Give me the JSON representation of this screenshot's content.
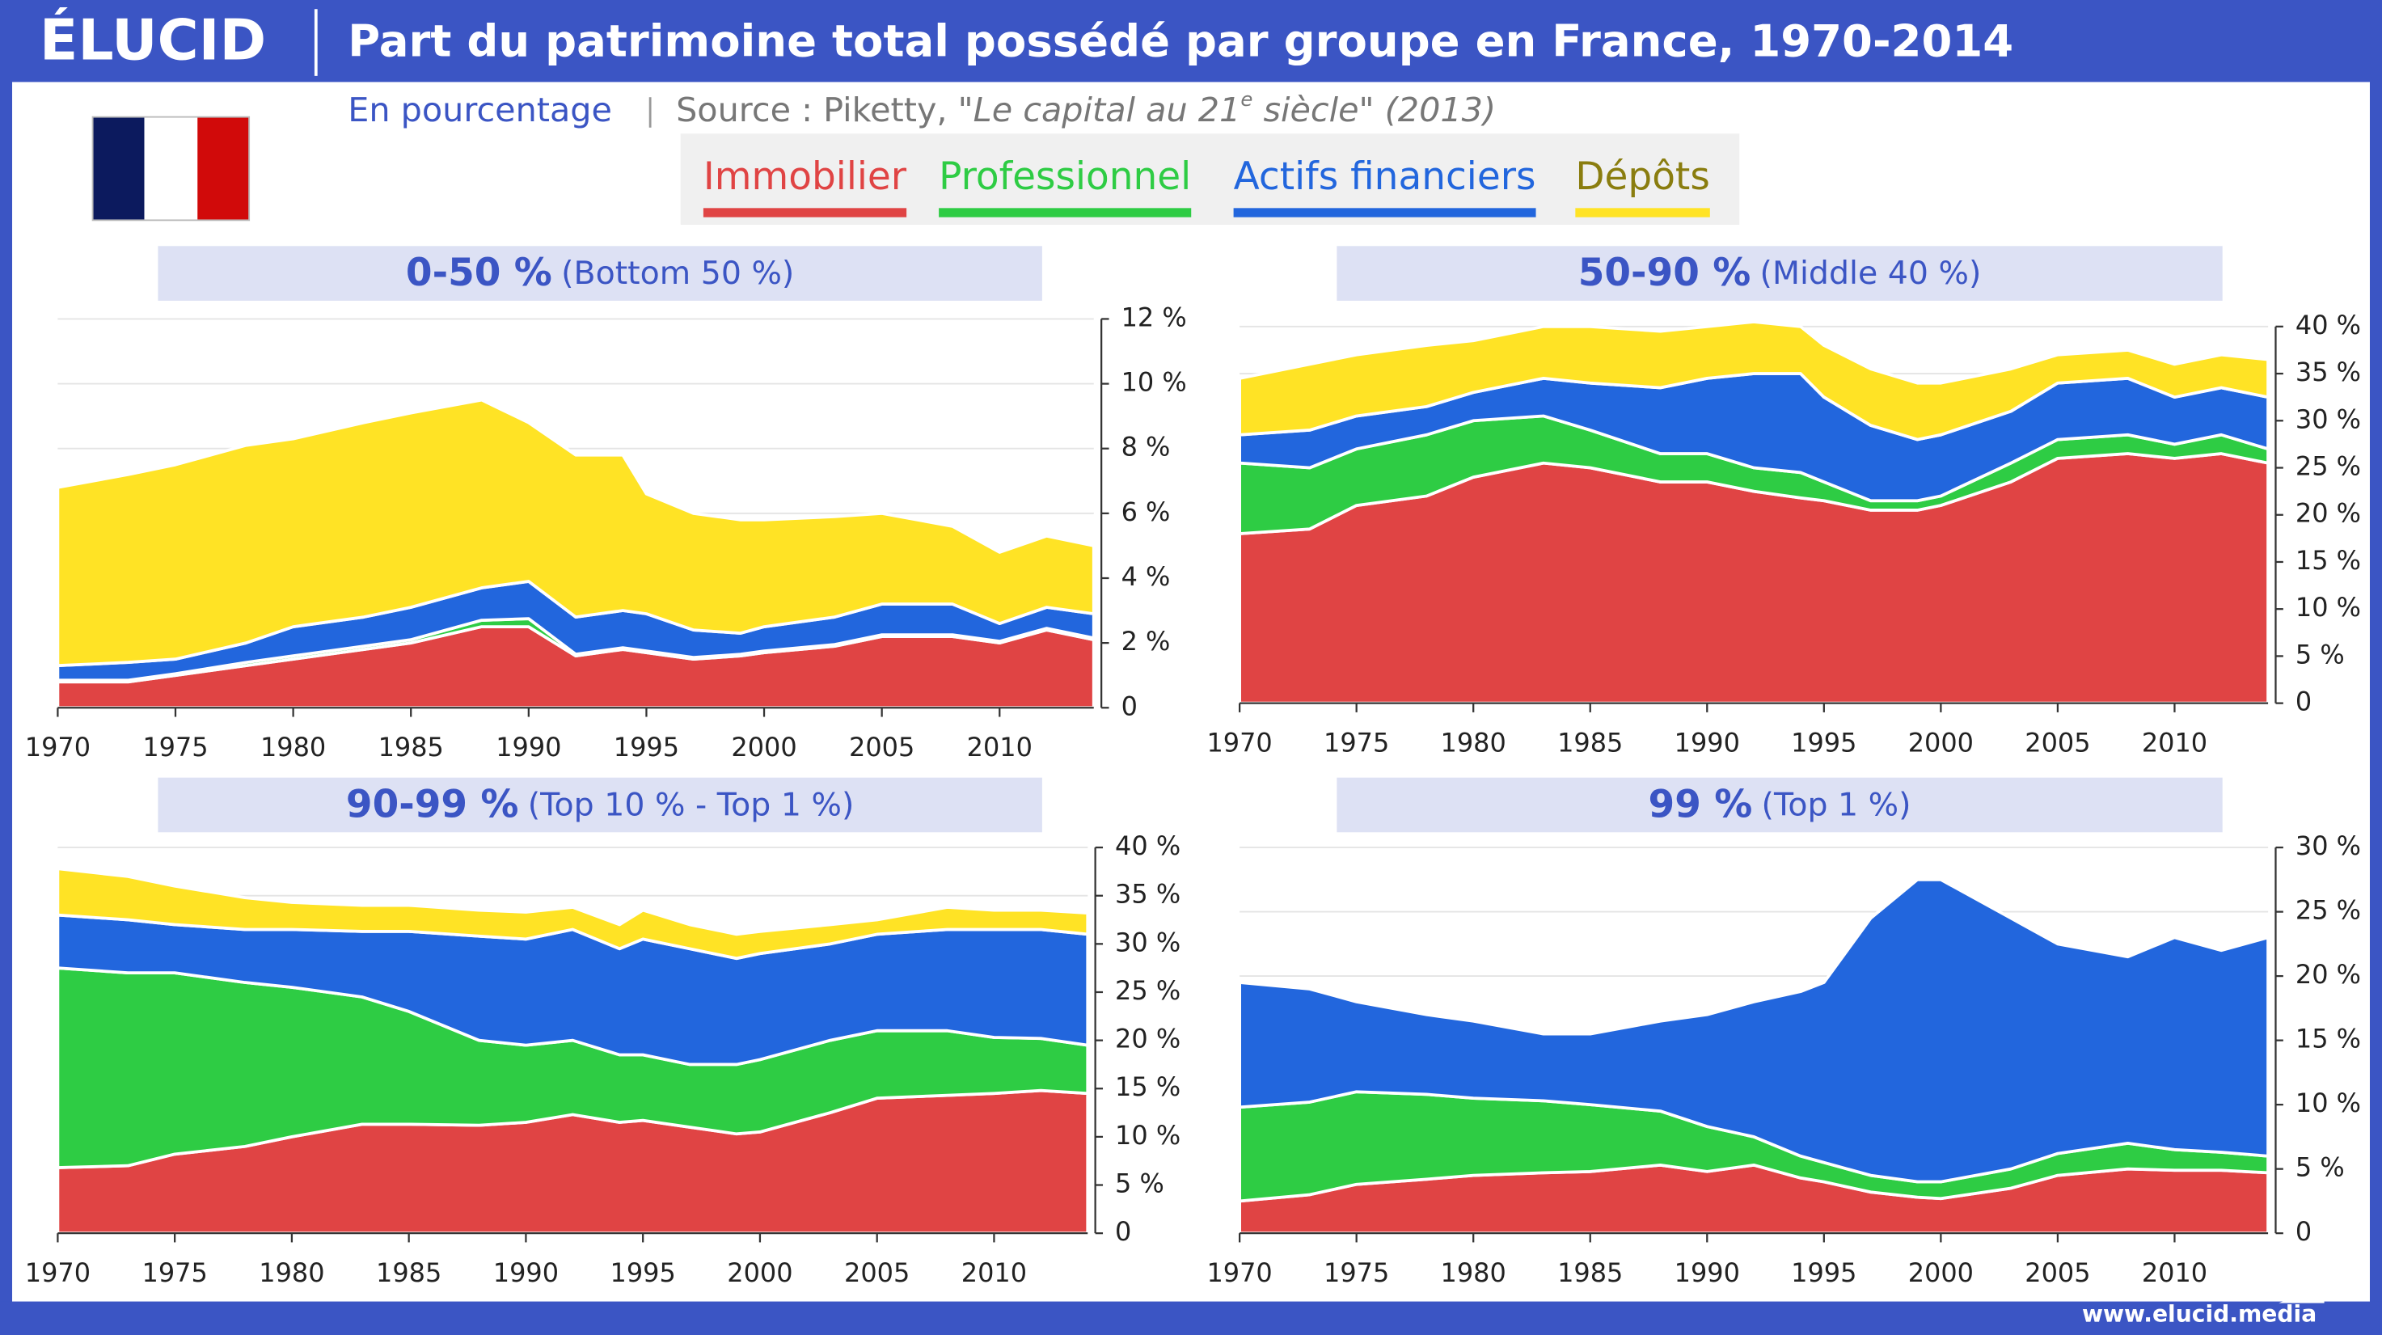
{
  "header": {
    "logo": "ÉLUCID",
    "title": "Part du patrimoine total possédé par groupe en France, 1970-2014",
    "unit": "En pourcentage",
    "source": "Source : Piketty, ",
    "book": [
      "\"Le capital au 21",
      "e",
      " siècle\" (2013)"
    ],
    "url": "www.elucid.media"
  },
  "chart_data": [
    {
      "type": "area",
      "title": "0-50 %",
      "subtitle": "(Bottom 50 %)",
      "x": [
        1970,
        1973,
        1975,
        1978,
        1980,
        1983,
        1985,
        1988,
        1990,
        1992,
        1994,
        1995,
        1997,
        1999,
        2000,
        2003,
        2005,
        2008,
        2010,
        2012,
        2014
      ],
      "xlim": [
        1970,
        2014
      ],
      "xticks": [
        1970,
        1975,
        1980,
        1985,
        1990,
        1995,
        2000,
        2005,
        2010
      ],
      "ylim": [
        0,
        12
      ],
      "yticks": [
        0,
        {
          "value": 2,
          "label": "2 %"
        },
        {
          "value": 4,
          "label": "4 %"
        },
        {
          "value": 6,
          "label": "6 %"
        },
        {
          "value": 8,
          "label": "8 %"
        },
        {
          "value": 10,
          "label": "10 %"
        },
        {
          "value": 12,
          "label": "12 %"
        }
      ],
      "grid": true,
      "series": [
        {
          "name": "Immobilier",
          "color": "#e04444",
          "values": [
            0.8,
            0.8,
            1.0,
            1.3,
            1.5,
            1.8,
            2.0,
            2.5,
            2.5,
            1.6,
            1.8,
            1.7,
            1.5,
            1.6,
            1.7,
            1.9,
            2.2,
            2.2,
            2.0,
            2.4,
            2.1
          ]
        },
        {
          "name": "Professionnel",
          "color": "#2ecc44",
          "values": [
            0.05,
            0.05,
            0.05,
            0.1,
            0.1,
            0.1,
            0.1,
            0.2,
            0.25,
            0.05,
            0.05,
            0.05,
            0.05,
            0.05,
            0.05,
            0.05,
            0.05,
            0.05,
            0.05,
            0.05,
            0.05
          ]
        },
        {
          "name": "Actifs financiers",
          "color": "#2266dd",
          "values": [
            0.45,
            0.55,
            0.45,
            0.6,
            0.9,
            0.9,
            1.0,
            1.0,
            1.15,
            1.15,
            1.15,
            1.15,
            0.85,
            0.65,
            0.75,
            0.85,
            0.95,
            0.95,
            0.55,
            0.65,
            0.75
          ]
        },
        {
          "name": "Dépôts",
          "color": "#ffe325",
          "values": [
            5.5,
            5.8,
            6.0,
            6.1,
            5.8,
            6.0,
            6.0,
            5.8,
            4.9,
            5.0,
            4.8,
            3.7,
            3.6,
            3.5,
            3.3,
            3.1,
            2.8,
            2.4,
            2.2,
            2.2,
            2.1
          ]
        }
      ]
    },
    {
      "type": "area",
      "title": "50-90 %",
      "subtitle": "(Middle 40 %)",
      "x": [
        1970,
        1973,
        1975,
        1978,
        1980,
        1983,
        1985,
        1988,
        1990,
        1992,
        1994,
        1995,
        1997,
        1999,
        2000,
        2003,
        2005,
        2008,
        2010,
        2012,
        2014
      ],
      "xlim": [
        1970,
        2014
      ],
      "xticks": [
        1970,
        1975,
        1980,
        1985,
        1990,
        1995,
        2000,
        2005,
        2010
      ],
      "ylim": [
        0,
        40
      ],
      "yticks": [
        0,
        {
          "value": 5,
          "label": "5 %"
        },
        {
          "value": 10,
          "label": "10 %"
        },
        {
          "value": 15,
          "label": "15 %"
        },
        {
          "value": 20,
          "label": "20 %"
        },
        {
          "value": 25,
          "label": "25 %"
        },
        {
          "value": 30,
          "label": "30 %"
        },
        {
          "value": 35,
          "label": "35 %"
        },
        {
          "value": 40,
          "label": "40 %"
        }
      ],
      "grid": true,
      "series": [
        {
          "name": "Immobilier",
          "color": "#e04444",
          "values": [
            18,
            18.5,
            21,
            22,
            24,
            25.5,
            25,
            23.5,
            23.5,
            22.5,
            21.8,
            21.5,
            20.5,
            20.5,
            21,
            23.5,
            26,
            26.5,
            26,
            26.5,
            25.5
          ]
        },
        {
          "name": "Professionnel",
          "color": "#2ecc44",
          "values": [
            7.5,
            6.5,
            6,
            6.5,
            6,
            5,
            4,
            3,
            3,
            2.5,
            2.7,
            2,
            1,
            1,
            1,
            2,
            2,
            2,
            1.5,
            2,
            1.5
          ]
        },
        {
          "name": "Actifs financiers",
          "color": "#2266dd",
          "values": [
            3,
            4,
            3.5,
            3,
            3,
            4,
            5,
            7,
            8,
            10,
            10.5,
            9,
            8,
            6.5,
            6.5,
            5.5,
            6,
            6,
            5,
            5,
            5.5
          ]
        },
        {
          "name": "Dépôts",
          "color": "#ffe325",
          "values": [
            6,
            7,
            6.5,
            6.5,
            5.5,
            5.5,
            6,
            6,
            5.5,
            5.5,
            5,
            5.5,
            6,
            6,
            5.5,
            4.5,
            3,
            3,
            3.5,
            3.5,
            4
          ]
        }
      ]
    },
    {
      "type": "area",
      "title": "90-99 %",
      "subtitle": "(Top 10 % - Top 1 %)",
      "x": [
        1970,
        1973,
        1975,
        1978,
        1980,
        1983,
        1985,
        1988,
        1990,
        1992,
        1994,
        1995,
        1997,
        1999,
        2000,
        2003,
        2005,
        2008,
        2010,
        2012,
        2014
      ],
      "xlim": [
        1970,
        2014
      ],
      "xticks": [
        1970,
        1975,
        1980,
        1985,
        1990,
        1995,
        2000,
        2005,
        2010
      ],
      "ylim": [
        0,
        40
      ],
      "yticks": [
        0,
        {
          "value": 5,
          "label": "5 %"
        },
        {
          "value": 10,
          "label": "10 %"
        },
        {
          "value": 15,
          "label": "15 %"
        },
        {
          "value": 20,
          "label": "20 %"
        },
        {
          "value": 25,
          "label": "25 %"
        },
        {
          "value": 30,
          "label": "30 %"
        },
        {
          "value": 35,
          "label": "35 %"
        },
        {
          "value": 40,
          "label": "40 %"
        }
      ],
      "grid": true,
      "series": [
        {
          "name": "Immobilier",
          "color": "#e04444",
          "values": [
            6.8,
            7,
            8.2,
            9,
            10,
            11.3,
            11.3,
            11.2,
            11.5,
            12.3,
            11.5,
            11.7,
            11,
            10.3,
            10.5,
            12.5,
            14,
            14.3,
            14.5,
            14.8,
            14.5
          ]
        },
        {
          "name": "Professionnel",
          "color": "#2ecc44",
          "values": [
            20.7,
            20,
            18.8,
            17,
            15.5,
            13.2,
            11.7,
            8.8,
            8,
            7.7,
            7,
            6.8,
            6.5,
            7.2,
            7.5,
            7.5,
            7,
            6.7,
            5.8,
            5.4,
            5
          ]
        },
        {
          "name": "Actifs financiers",
          "color": "#2266dd",
          "values": [
            5.5,
            5.5,
            5,
            5.5,
            6,
            6.8,
            8.3,
            10.8,
            11,
            11.5,
            11,
            12,
            12,
            11,
            11,
            10,
            10,
            10.5,
            11.2,
            11.3,
            11.5
          ]
        },
        {
          "name": "Dépôts",
          "color": "#ffe325",
          "values": [
            4.8,
            4.5,
            4,
            3.3,
            2.8,
            2.7,
            2.7,
            2.7,
            2.8,
            2.3,
            2.5,
            3,
            2.5,
            2.5,
            2.3,
            2,
            1.5,
            2.3,
            2,
            2,
            2.2
          ]
        }
      ]
    },
    {
      "type": "area",
      "title": "99 %",
      "subtitle": "(Top 1 %)",
      "x": [
        1970,
        1973,
        1975,
        1978,
        1980,
        1983,
        1985,
        1988,
        1990,
        1992,
        1994,
        1995,
        1997,
        1999,
        2000,
        2003,
        2005,
        2008,
        2010,
        2012,
        2014
      ],
      "xlim": [
        1970,
        2014
      ],
      "xticks": [
        1970,
        1975,
        1980,
        1985,
        1990,
        1995,
        2000,
        2005,
        2010
      ],
      "ylim": [
        0,
        30
      ],
      "yticks": [
        0,
        {
          "value": 5,
          "label": "5 %"
        },
        {
          "value": 10,
          "label": "10 %"
        },
        {
          "value": 15,
          "label": "15 %"
        },
        {
          "value": 20,
          "label": "20 %"
        },
        {
          "value": 25,
          "label": "25 %"
        },
        {
          "value": 30,
          "label": "30 %"
        }
      ],
      "grid": true,
      "series": [
        {
          "name": "Immobilier",
          "color": "#e04444",
          "values": [
            2.5,
            3,
            3.8,
            4.2,
            4.5,
            4.7,
            4.8,
            5.3,
            4.8,
            5.3,
            4.3,
            4,
            3.2,
            2.8,
            2.7,
            3.5,
            4.5,
            5,
            4.9,
            4.9,
            4.7
          ]
        },
        {
          "name": "Professionnel",
          "color": "#2ecc44",
          "values": [
            7.3,
            7.2,
            7.2,
            6.6,
            6,
            5.6,
            5.2,
            4.2,
            3.5,
            2.2,
            1.7,
            1.5,
            1.3,
            1.2,
            1.3,
            1.5,
            1.7,
            2,
            1.6,
            1.4,
            1.3
          ]
        },
        {
          "name": "Actifs financiers",
          "color": "#2266dd",
          "values": [
            9.7,
            8.8,
            7,
            6.2,
            6,
            5.2,
            5.5,
            7,
            8.7,
            10.5,
            12.8,
            14,
            20,
            23.5,
            23.5,
            19.5,
            16.3,
            14.5,
            16.5,
            15.7,
            17
          ]
        }
      ]
    }
  ]
}
